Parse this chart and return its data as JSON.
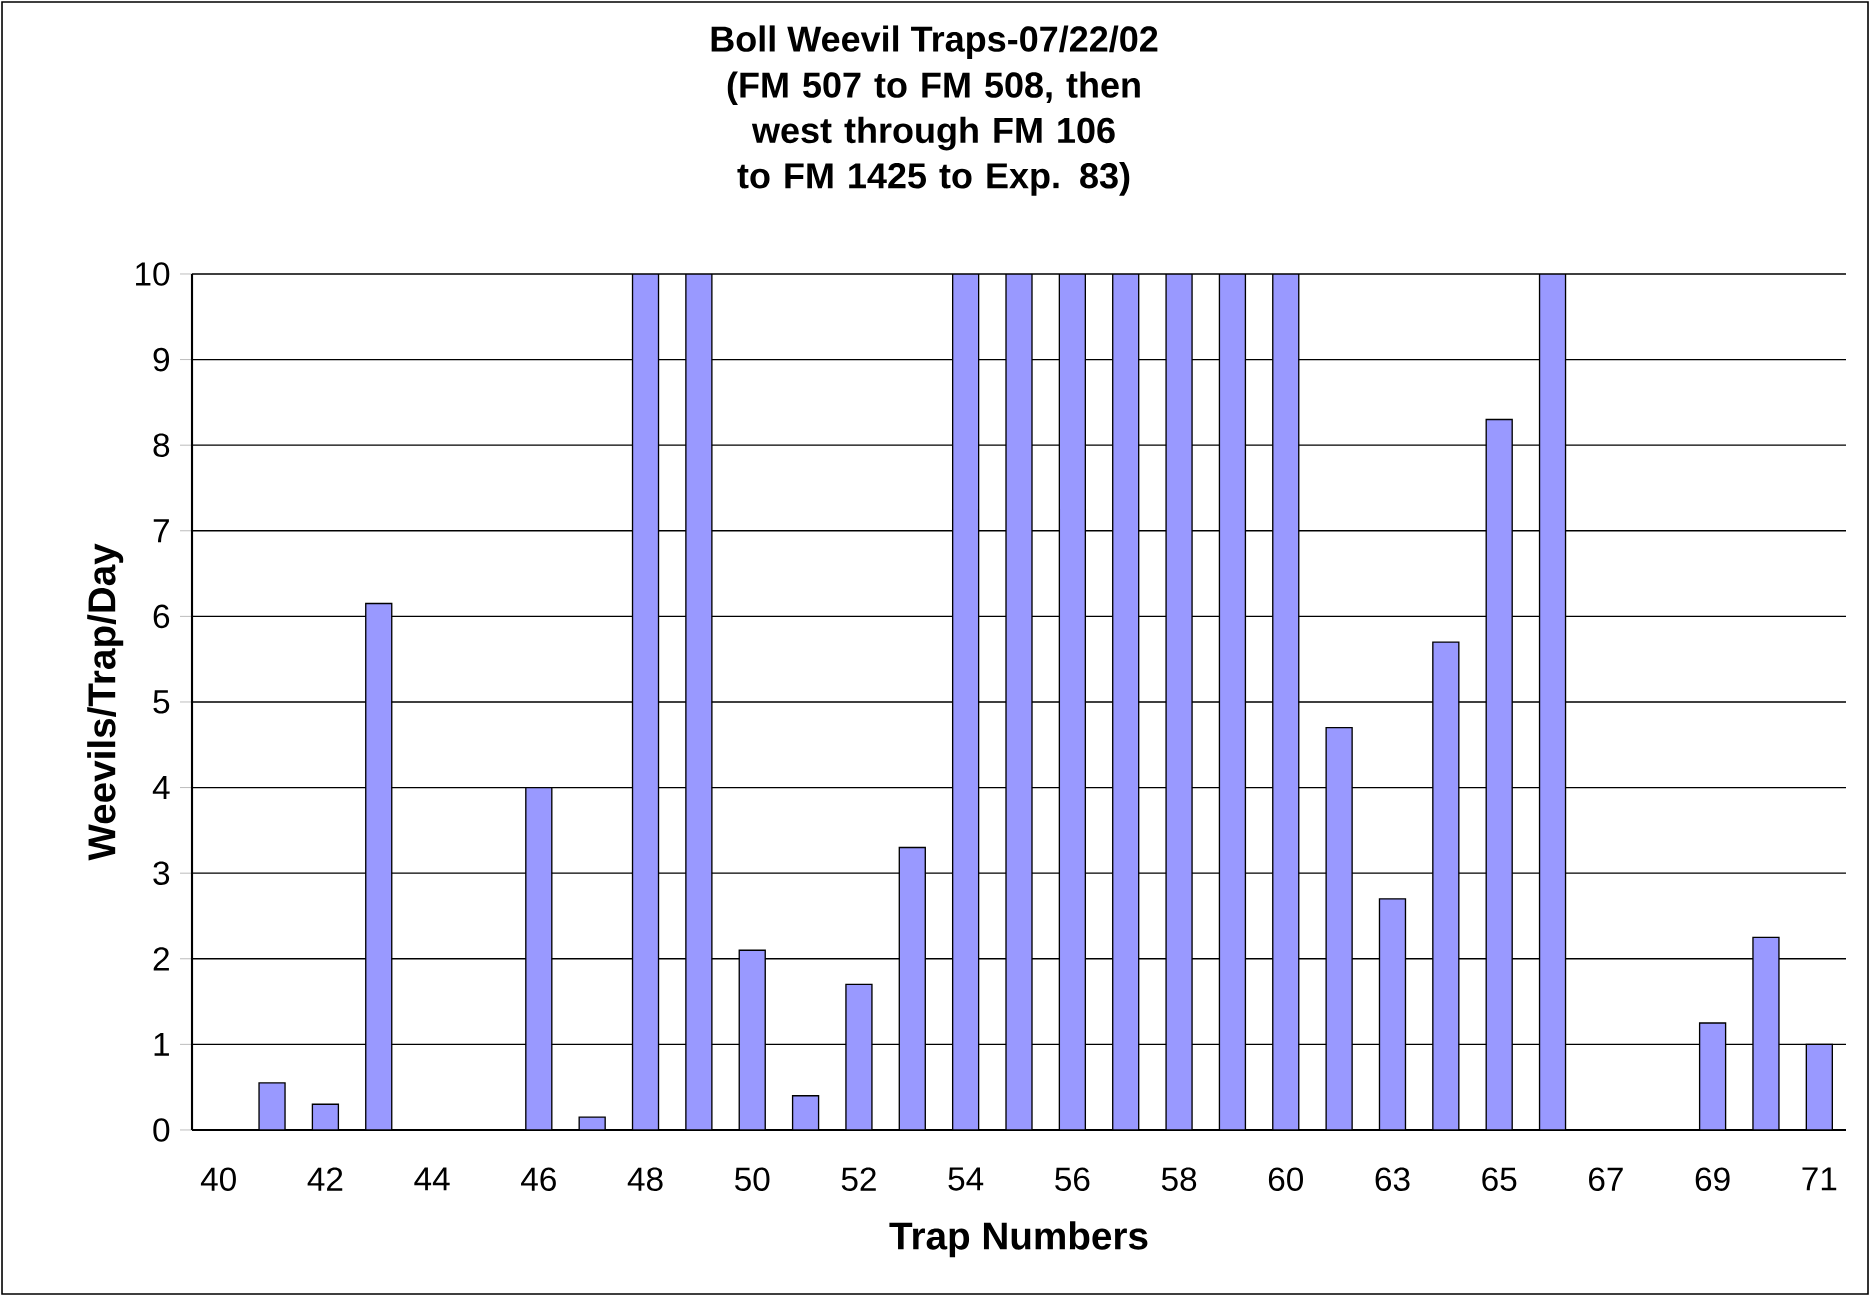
{
  "chart_data": {
    "type": "bar",
    "title": "Boll Weevil Traps-07/22/02",
    "subtitle": "(FM 507 to FM 508, then west through FM 106 to FM 1425 to Exp. 83)",
    "xlabel": "Trap Numbers",
    "ylabel": "Weevils/Trap/Day",
    "categories": [
      "40",
      null,
      "42",
      null,
      "44",
      null,
      "46",
      null,
      "48",
      null,
      "50",
      null,
      "52",
      null,
      "54",
      null,
      "56",
      null,
      "58",
      null,
      "60",
      null,
      "63",
      null,
      "65",
      null,
      "67",
      null,
      "69",
      null,
      "71"
    ],
    "values": [
      null,
      0.55,
      0.3,
      6.15,
      null,
      null,
      4.0,
      0.15,
      10,
      10,
      2.1,
      0.4,
      1.7,
      3.3,
      10,
      10,
      10,
      10,
      10,
      10,
      10,
      4.7,
      2.7,
      5.7,
      8.3,
      10,
      null,
      null,
      1.25,
      2.25,
      1.0
    ],
    "color": "#9999ff",
    "ylim": [
      0,
      10
    ],
    "yticks": [
      0,
      1,
      2,
      3,
      4,
      5,
      6,
      7,
      8,
      9,
      10
    ],
    "grid": "y"
  }
}
